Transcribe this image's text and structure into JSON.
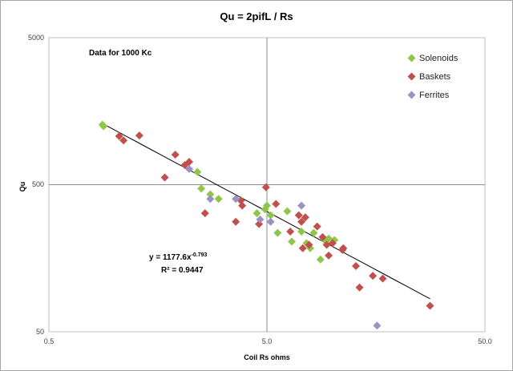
{
  "chart_data": {
    "type": "scatter",
    "title": "Qu = 2pifL / Rs",
    "xlabel": "Coil Rs  ohms",
    "ylabel": "Qu",
    "x_scale": "log",
    "y_scale": "log",
    "xlim": [
      0.5,
      50
    ],
    "ylim": [
      50,
      5000
    ],
    "x_ticks": [
      "0.5",
      "5.0",
      "50.0"
    ],
    "y_ticks": [
      "5000",
      "500",
      "50"
    ],
    "grid": true,
    "legend_position": "top-right",
    "annotation": "Data for 1000 Kc",
    "trendline": {
      "type": "power",
      "a": 1177.6,
      "b": -0.793,
      "equation_prefix": "y = 1177.6x",
      "equation_exponent": "-0.793",
      "r2_label": "R² = 0.9447"
    },
    "series": [
      {
        "name": "Solenoids",
        "color": "#8fc649",
        "points": [
          [
            0.88,
            1280
          ],
          [
            0.89,
            1250
          ],
          [
            2.4,
            610
          ],
          [
            2.5,
            470
          ],
          [
            2.75,
            430
          ],
          [
            3.0,
            400
          ],
          [
            4.5,
            320
          ],
          [
            4.9,
            340
          ],
          [
            5.0,
            360
          ],
          [
            5.2,
            310
          ],
          [
            5.6,
            235
          ],
          [
            6.2,
            330
          ],
          [
            6.5,
            205
          ],
          [
            7.2,
            240
          ],
          [
            7.6,
            200
          ],
          [
            7.9,
            185
          ],
          [
            8.2,
            235
          ],
          [
            8.8,
            155
          ],
          [
            9.2,
            210
          ],
          [
            9.6,
            215
          ],
          [
            10.2,
            210
          ]
        ]
      },
      {
        "name": "Baskets",
        "color": "#c0504d",
        "points": [
          [
            1.05,
            1070
          ],
          [
            1.1,
            1000
          ],
          [
            1.3,
            1080
          ],
          [
            1.7,
            560
          ],
          [
            1.9,
            800
          ],
          [
            2.1,
            680
          ],
          [
            2.2,
            715
          ],
          [
            2.6,
            320
          ],
          [
            3.6,
            280
          ],
          [
            3.85,
            360
          ],
          [
            3.8,
            390
          ],
          [
            4.6,
            270
          ],
          [
            4.95,
            480
          ],
          [
            5.5,
            370
          ],
          [
            6.4,
            240
          ],
          [
            7.0,
            310
          ],
          [
            7.2,
            280
          ],
          [
            7.5,
            300
          ],
          [
            7.3,
            185
          ],
          [
            7.8,
            195
          ],
          [
            8.5,
            260
          ],
          [
            9.0,
            220
          ],
          [
            9.4,
            195
          ],
          [
            9.6,
            165
          ],
          [
            10.0,
            200
          ],
          [
            11.1,
            180
          ],
          [
            11.2,
            185
          ],
          [
            12.8,
            140
          ],
          [
            13.3,
            100
          ],
          [
            15.3,
            120
          ],
          [
            17.0,
            115
          ],
          [
            28.0,
            75
          ]
        ]
      },
      {
        "name": "Ferrites",
        "color": "#9d91c4",
        "points": [
          [
            2.2,
            640
          ],
          [
            2.75,
            400
          ],
          [
            3.6,
            400
          ],
          [
            4.65,
            290
          ],
          [
            5.2,
            280
          ],
          [
            7.2,
            360
          ],
          [
            16.0,
            55
          ]
        ]
      }
    ]
  }
}
